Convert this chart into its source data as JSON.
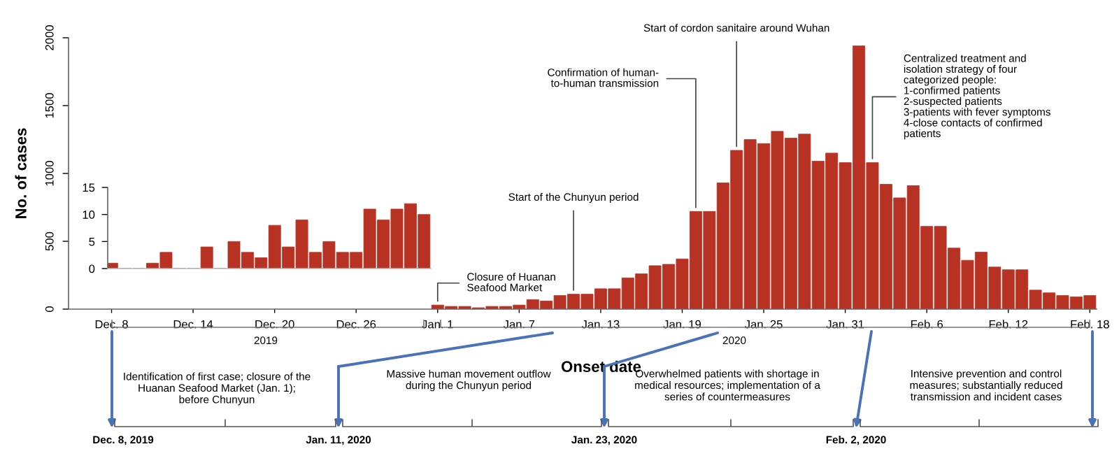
{
  "chart_data": [
    {
      "type": "bar",
      "ylabel": "No. of cases",
      "xlabel": "Onset date",
      "color": "#b83224",
      "x": [
        "2020-01-01",
        "2020-01-02",
        "2020-01-03",
        "2020-01-04",
        "2020-01-05",
        "2020-01-06",
        "2020-01-07",
        "2020-01-08",
        "2020-01-09",
        "2020-01-10",
        "2020-01-11",
        "2020-01-12",
        "2020-01-13",
        "2020-01-14",
        "2020-01-15",
        "2020-01-16",
        "2020-01-17",
        "2020-01-18",
        "2020-01-19",
        "2020-01-20",
        "2020-01-21",
        "2020-01-22",
        "2020-01-23",
        "2020-01-24",
        "2020-01-25",
        "2020-01-26",
        "2020-01-27",
        "2020-01-28",
        "2020-01-29",
        "2020-01-30",
        "2020-01-31",
        "2020-02-01",
        "2020-02-02",
        "2020-02-03",
        "2020-02-04",
        "2020-02-05",
        "2020-02-06",
        "2020-02-07",
        "2020-02-08",
        "2020-02-09",
        "2020-02-10",
        "2020-02-11",
        "2020-02-12",
        "2020-02-13",
        "2020-02-14",
        "2020-02-15",
        "2020-02-16",
        "2020-02-17",
        "2020-02-18"
      ],
      "values": [
        30,
        20,
        20,
        10,
        20,
        20,
        30,
        70,
        60,
        100,
        110,
        110,
        150,
        150,
        230,
        260,
        320,
        330,
        370,
        720,
        720,
        930,
        1170,
        1250,
        1220,
        1310,
        1260,
        1290,
        1090,
        1150,
        1080,
        1940,
        1080,
        920,
        820,
        910,
        610,
        610,
        450,
        360,
        420,
        310,
        290,
        290,
        140,
        120,
        100,
        90,
        100
      ],
      "xlim": [
        "2019-12-04T20:00",
        "2020-02-18T12:00"
      ],
      "xticks": [
        {
          "value": "2019-12-08",
          "label": "Dec. 8"
        },
        {
          "value": "2019-12-14",
          "label": "Dec. 14"
        },
        {
          "value": "2019-12-20",
          "label": "Dec. 20"
        },
        {
          "value": "2019-12-26",
          "label": "Dec. 26"
        },
        {
          "value": "2020-01-01",
          "label": "Jan. 1"
        },
        {
          "value": "2020-01-07",
          "label": "Jan. 7"
        },
        {
          "value": "2020-01-13",
          "label": "Jan. 13"
        },
        {
          "value": "2020-01-19",
          "label": "Jan. 19"
        },
        {
          "value": "2020-01-25",
          "label": "Jan. 25"
        },
        {
          "value": "2020-01-31",
          "label": "Jan. 31"
        },
        {
          "value": "2020-02-06",
          "label": "Feb. 6"
        },
        {
          "value": "2020-02-12",
          "label": "Feb. 12"
        },
        {
          "value": "2020-02-18",
          "label": "Feb. 18"
        }
      ],
      "ylim": [
        0,
        2000
      ],
      "yticks": [
        0,
        500,
        1000,
        1500,
        2000
      ],
      "grid": false,
      "legend": false,
      "annotations": [
        {
          "text": "Closure of Huanan\nSeafood Market",
          "x": "2020-01-01",
          "y": 30
        },
        {
          "text": "Start of the Chunyun period",
          "x": "2020-01-11",
          "y": 110
        },
        {
          "text": "Confirmation of human-\nto-human transmission",
          "x": "2020-01-20",
          "y": 720
        },
        {
          "text": "Start of cordon sanitaire around Wuhan",
          "x": "2020-01-23",
          "y": 1170
        },
        {
          "text": "Centralized treatment and\nisolation strategy of four\ncategorized people:\n1-confirmed patients\n2-suspected patients\n3-patients with fever symptoms\n4-close contacts of confirmed\npatients",
          "x": "2020-02-02",
          "y": 1080
        },
        "2019",
        "2020",
        "Identification of first case; closure of the\nHuanan Seafood Market (Jan. 1);\nbefore Chunyun",
        "Massive human movement outflow\nduring the Chunyun period",
        "Overwhelmed patients with shortage in\nmedical resources; implementation of a\nseries of countermeasures",
        "Intensive prevention and control\nmeasures; substantially reduced\ntransmission and incident cases",
        "Dec. 8, 2019",
        "Jan. 11, 2020",
        "Jan. 23, 2020",
        "Feb. 2, 2020"
      ]
    },
    {
      "type": "bar",
      "color": "#b83224",
      "tick_labels": "y",
      "categories": [
        null,
        null,
        null,
        null,
        null,
        null,
        null,
        null,
        null,
        null,
        null,
        null,
        null,
        null,
        null,
        null,
        null,
        null,
        null,
        null,
        null,
        null,
        null,
        null
      ],
      "values": [
        1,
        0,
        0,
        1,
        3,
        0,
        0,
        4,
        0,
        5,
        3,
        2,
        8,
        4,
        9,
        3,
        5,
        3,
        3,
        11,
        9,
        11,
        12,
        10
      ],
      "ylim": [
        0,
        15
      ],
      "yticks": [
        0,
        5,
        10,
        15
      ]
    }
  ]
}
